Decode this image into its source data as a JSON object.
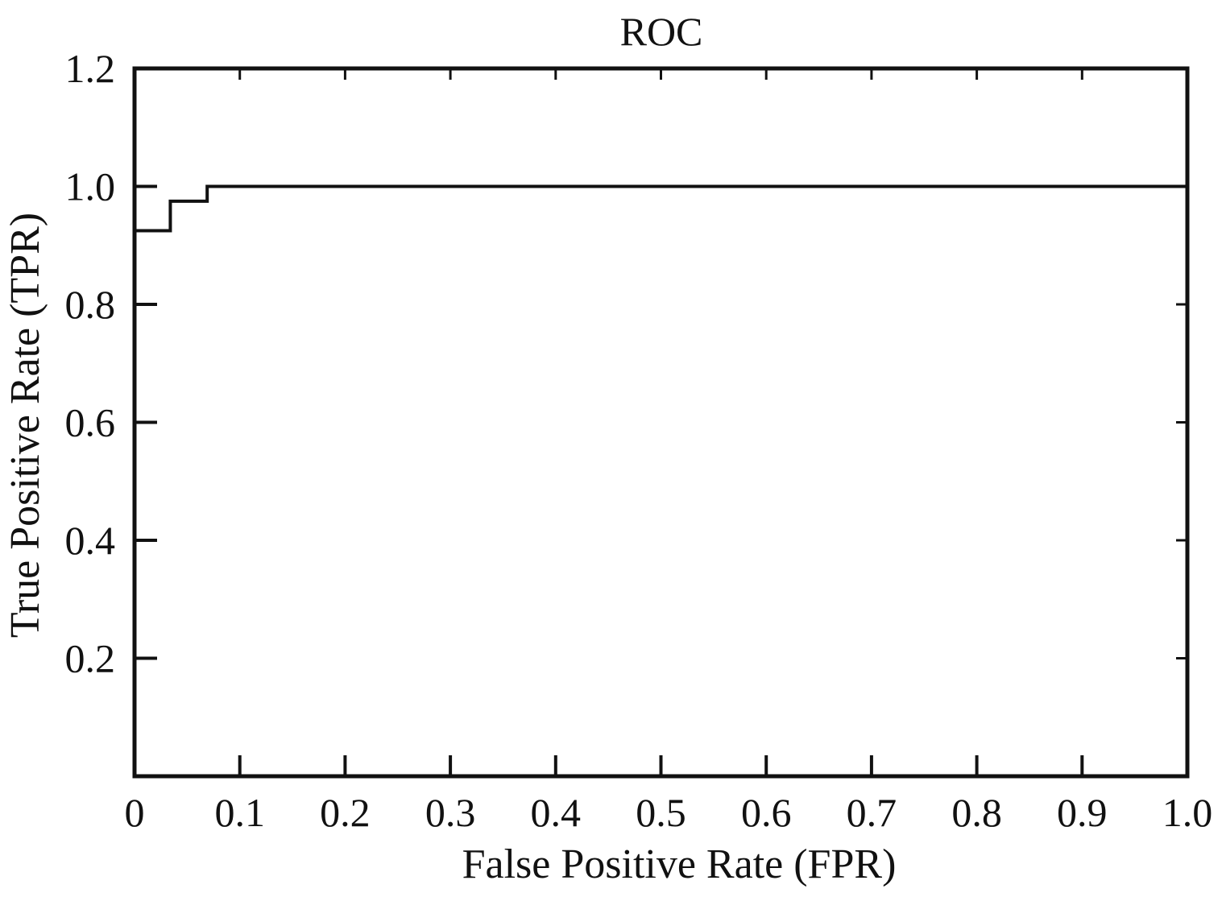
{
  "chart_data": {
    "type": "line",
    "title": "ROC",
    "xlabel": "False Positive Rate (FPR)",
    "ylabel": "True Positive Rate (TPR)",
    "xlim": [
      0,
      1.0
    ],
    "ylim": [
      0,
      1.2
    ],
    "x_ticks": [
      0,
      0.1,
      0.2,
      0.3,
      0.4,
      0.5,
      0.6,
      0.7,
      0.8,
      0.9,
      1.0
    ],
    "x_tick_labels": [
      "0",
      "0.1",
      "0.2",
      "0.3",
      "0.4",
      "0.5",
      "0.6",
      "0.7",
      "0.8",
      "0.9",
      "1.0"
    ],
    "y_ticks": [
      0.2,
      0.4,
      0.6,
      0.8,
      1.0,
      1.2
    ],
    "y_tick_labels": [
      "0.2",
      "0.4",
      "0.6",
      "0.8",
      "1.0",
      "1.2"
    ],
    "grid": false,
    "series": [
      {
        "color": "#111111",
        "x": [
          0,
          0.034,
          0.034,
          0.069,
          0.069,
          1.0
        ],
        "y": [
          0.925,
          0.925,
          0.975,
          0.975,
          1.0,
          1.0
        ]
      }
    ]
  }
}
